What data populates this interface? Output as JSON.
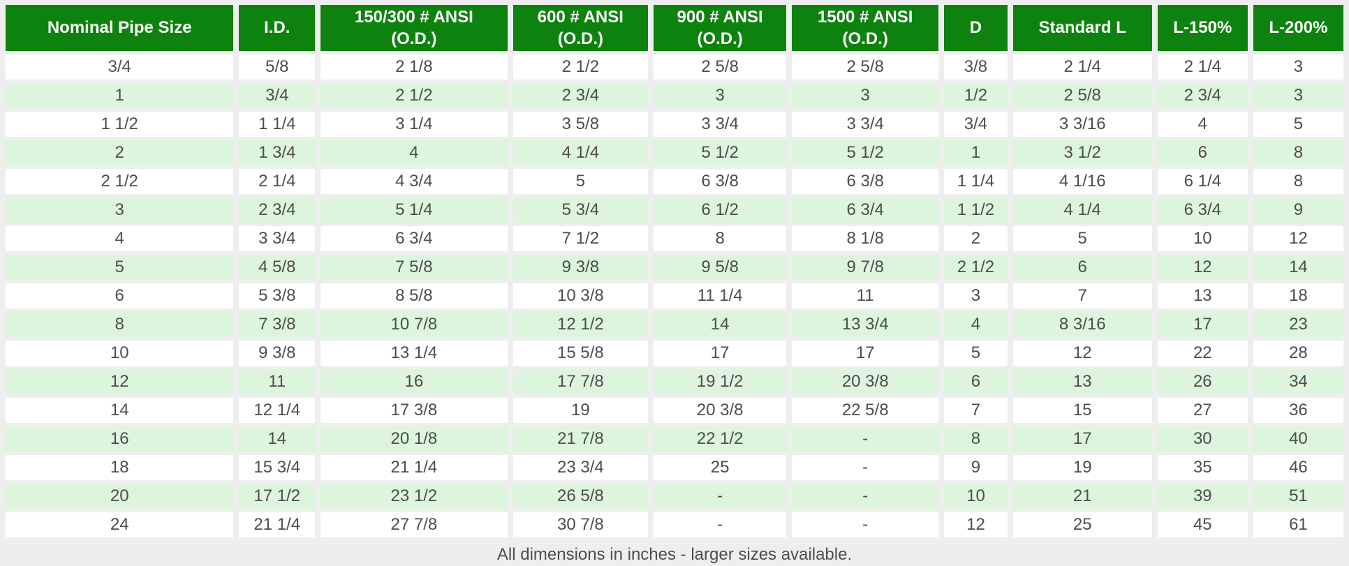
{
  "table": {
    "headers": [
      "Nominal Pipe Size",
      "I.D.",
      "150/300 # ANSI\n(O.D.)",
      "600 # ANSI\n(O.D.)",
      "900 # ANSI\n(O.D.)",
      "1500 # ANSI\n(O.D.)",
      "D",
      "Standard L",
      "L-150%",
      "L-200%"
    ],
    "rows": [
      [
        "3/4",
        "5/8",
        "2 1/8",
        "2 1/2",
        "2 5/8",
        "2 5/8",
        "3/8",
        "2 1/4",
        "2 1/4",
        "3"
      ],
      [
        "1",
        "3/4",
        "2 1/2",
        "2 3/4",
        "3",
        "3",
        "1/2",
        "2 5/8",
        "2 3/4",
        "3"
      ],
      [
        "1 1/2",
        "1 1/4",
        "3 1/4",
        "3 5/8",
        "3 3/4",
        "3 3/4",
        "3/4",
        "3 3/16",
        "4",
        "5"
      ],
      [
        "2",
        "1 3/4",
        "4",
        "4 1/4",
        "5 1/2",
        "5 1/2",
        "1",
        "3 1/2",
        "6",
        "8"
      ],
      [
        "2 1/2",
        "2 1/4",
        "4 3/4",
        "5",
        "6 3/8",
        "6 3/8",
        "1 1/4",
        "4 1/16",
        "6 1/4",
        "8"
      ],
      [
        "3",
        "2 3/4",
        "5 1/4",
        "5 3/4",
        "6 1/2",
        "6 3/4",
        "1 1/2",
        "4 1/4",
        "6 3/4",
        "9"
      ],
      [
        "4",
        "3 3/4",
        "6 3/4",
        "7 1/2",
        "8",
        "8 1/8",
        "2",
        "5",
        "10",
        "12"
      ],
      [
        "5",
        "4 5/8",
        "7 5/8",
        "9 3/8",
        "9 5/8",
        "9 7/8",
        "2 1/2",
        "6",
        "12",
        "14"
      ],
      [
        "6",
        "5 3/8",
        "8 5/8",
        "10 3/8",
        "11 1/4",
        "11",
        "3",
        "7",
        "13",
        "18"
      ],
      [
        "8",
        "7 3/8",
        "10 7/8",
        "12 1/2",
        "14",
        "13 3/4",
        "4",
        "8 3/16",
        "17",
        "23"
      ],
      [
        "10",
        "9 3/8",
        "13 1/4",
        "15 5/8",
        "17",
        "17",
        "5",
        "12",
        "22",
        "28"
      ],
      [
        "12",
        "11",
        "16",
        "17 7/8",
        "19 1/2",
        "20 3/8",
        "6",
        "13",
        "26",
        "34"
      ],
      [
        "14",
        "12 1/4",
        "17 3/8",
        "19",
        "20 3/8",
        "22 5/8",
        "7",
        "15",
        "27",
        "36"
      ],
      [
        "16",
        "14",
        "20 1/8",
        "21 7/8",
        "22 1/2",
        "-",
        "8",
        "17",
        "30",
        "40"
      ],
      [
        "18",
        "15 3/4",
        "21 1/4",
        "23 3/4",
        "25",
        "-",
        "9",
        "19",
        "35",
        "46"
      ],
      [
        "20",
        "17 1/2",
        "23 1/2",
        "26 5/8",
        "-",
        "-",
        "10",
        "21",
        "39",
        "51"
      ],
      [
        "24",
        "21 1/4",
        "27 7/8",
        "30 7/8",
        "-",
        "-",
        "12",
        "25",
        "45",
        "61"
      ]
    ],
    "footer_note": "All dimensions in inches - larger sizes available."
  },
  "colors": {
    "header_bg": "#0e820e",
    "header_text": "#ffffff",
    "row_odd_bg": "#ffffff",
    "row_even_bg": "#ddf5dd",
    "page_bg": "#eeeeee",
    "cell_text": "#4d4d4d"
  }
}
